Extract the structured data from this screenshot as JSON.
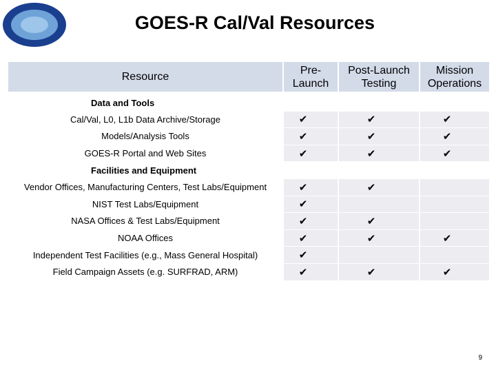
{
  "header": {
    "title": "GOES-R Cal/Val Resources"
  },
  "table": {
    "columns": [
      "Resource",
      "Pre-Launch",
      "Post-Launch Testing",
      "Mission Operations"
    ],
    "sections": [
      {
        "title": "Data and Tools",
        "rows": [
          [
            "Cal/Val, L0, L1b Data Archive/Storage",
            "✔",
            "✔",
            "✔"
          ],
          [
            "Models/Analysis Tools",
            "✔",
            "✔",
            "✔"
          ],
          [
            "GOES-R Portal and Web Sites",
            "✔",
            "✔",
            "✔"
          ]
        ]
      },
      {
        "title": "Facilities and Equipment",
        "rows": [
          [
            "Vendor Offices, Manufacturing Centers, Test Labs/Equipment",
            "✔",
            "✔",
            null
          ],
          [
            "NIST Test Labs/Equipment",
            "✔",
            null,
            null
          ],
          [
            "NASA Offices & Test Labs/Equipment",
            "✔",
            "✔",
            null
          ],
          [
            "NOAA Offices",
            "✔",
            "✔",
            "✔"
          ],
          [
            "Independent Test Facilities (e.g., Mass General Hospital)",
            "✔",
            null,
            null
          ],
          [
            "Field Campaign Assets (e.g. SURFRAD, ARM)",
            "✔",
            "✔",
            "✔"
          ]
        ]
      }
    ]
  },
  "footer": {
    "page": "9"
  }
}
